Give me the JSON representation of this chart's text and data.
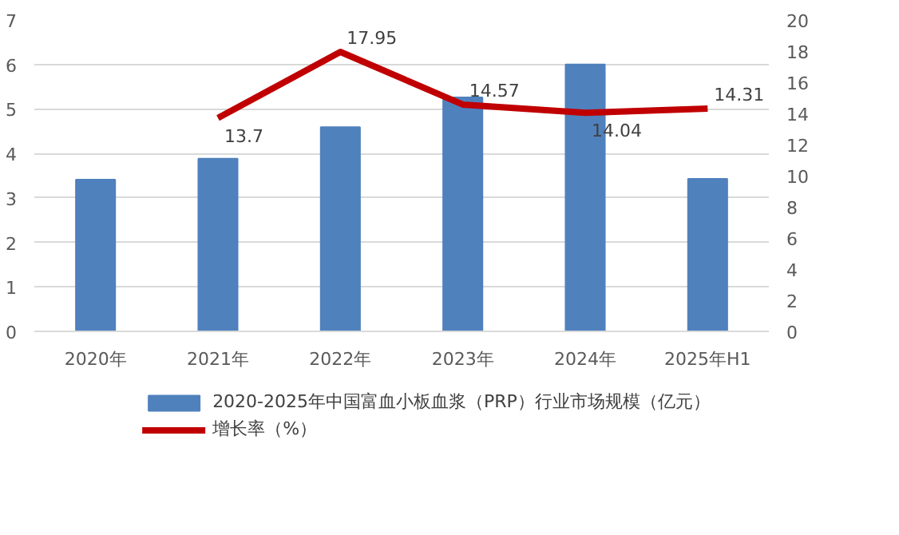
{
  "chart_data": {
    "type": "bar",
    "categories": [
      "2020年",
      "2021年",
      "2022年",
      "2023年",
      "2024年",
      "2025年H1"
    ],
    "series": [
      {
        "name": "2020-2025年中国富血小板血浆（PRP）行业市场规模（亿元）",
        "color": "#4f81bd",
        "values": [
          3.41,
          3.88,
          4.59,
          5.26,
          6.0,
          3.43
        ]
      },
      {
        "name": "增长率（%）",
        "type": "line",
        "axis": "y2",
        "color": "#c00000",
        "values": [
          null,
          13.7,
          17.95,
          14.57,
          14.04,
          14.31
        ],
        "value_labels": [
          null,
          "13.7",
          "17.95",
          "14.57",
          "14.04",
          "14.31"
        ]
      }
    ],
    "ylim": [
      0,
      7
    ],
    "yticks": [
      0,
      1,
      2,
      3,
      4,
      5,
      6,
      7
    ],
    "y2lim": [
      0,
      20
    ],
    "y2ticks": [
      0,
      2,
      4,
      6,
      8,
      10,
      12,
      14,
      16,
      18,
      20
    ],
    "grid": "y",
    "legend": "bottom"
  }
}
